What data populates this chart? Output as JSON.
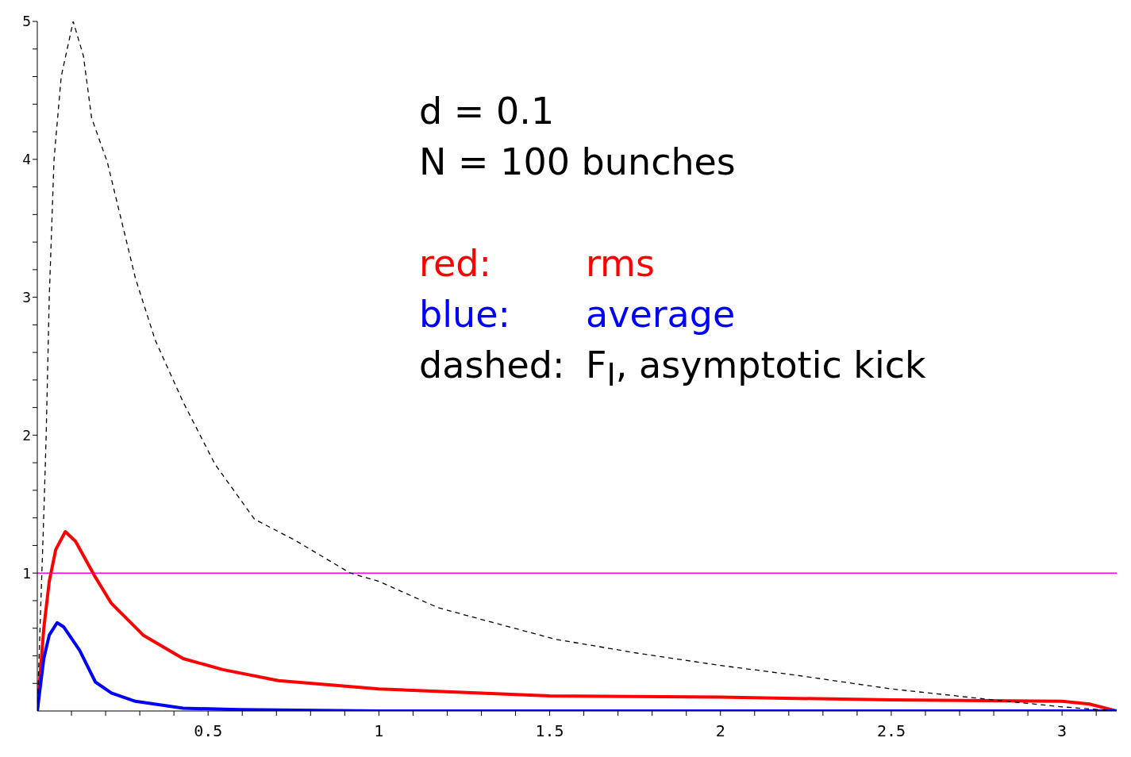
{
  "chart_data": {
    "type": "line",
    "annotations": [
      "d = 0.1",
      "N = 100 bunches",
      "red:",
      "blue:",
      "dashed:"
    ],
    "series": [
      {
        "name": "rms",
        "color": "#ff0000",
        "line_style": "solid",
        "x": [
          0,
          0.019,
          0.035,
          0.054,
          0.082,
          0.112,
          0.17,
          0.217,
          0.31,
          0.427,
          0.543,
          0.706,
          1.0,
          1.5,
          2.0,
          2.5,
          3.0,
          3.08,
          3.16
        ],
        "values": [
          0,
          0.6,
          0.94,
          1.17,
          1.3,
          1.23,
          0.97,
          0.78,
          0.55,
          0.38,
          0.3,
          0.22,
          0.16,
          0.11,
          0.1,
          0.08,
          0.07,
          0.05,
          0
        ]
      },
      {
        "name": "average",
        "color": "#0000ff",
        "line_style": "solid",
        "x": [
          0,
          0.019,
          0.035,
          0.058,
          0.077,
          0.124,
          0.17,
          0.217,
          0.287,
          0.427,
          0.59,
          1.0,
          3.16
        ],
        "values": [
          0,
          0.38,
          0.55,
          0.64,
          0.61,
          0.44,
          0.21,
          0.13,
          0.07,
          0.02,
          0.01,
          0,
          0
        ]
      },
      {
        "name": "F$_{I}$, asymptotic kick",
        "color": "#000000",
        "line_style": "dashed",
        "x": [
          0,
          0.02,
          0.026,
          0.035,
          0.049,
          0.07,
          0.105,
          0.135,
          0.159,
          0.205,
          0.287,
          0.345,
          0.427,
          0.52,
          0.636,
          0.753,
          0.916,
          1.0,
          1.172,
          1.336,
          1.517,
          1.755,
          2.0,
          2.22,
          2.5,
          2.8,
          3.0,
          3.16
        ],
        "values": [
          0,
          1.5,
          2,
          3,
          4,
          4.6,
          5,
          4.75,
          4.3,
          3.98,
          3.14,
          2.69,
          2.24,
          1.79,
          1.39,
          1.24,
          1.0,
          0.94,
          0.75,
          0.64,
          0.52,
          0.42,
          0.33,
          0.26,
          0.16,
          0.08,
          0.03,
          0
        ]
      }
    ],
    "ref_lines": [
      {
        "axis": "y",
        "value": 1,
        "color": "#ff00ff",
        "line_style": "solid"
      }
    ],
    "xlim": [
      0,
      3.16
    ],
    "xticks": [
      {
        "value": 0.1,
        "label": null
      },
      {
        "value": 0.2,
        "label": null
      },
      {
        "value": 0.3,
        "label": null
      },
      {
        "value": 0.4,
        "label": null
      },
      0.5,
      {
        "value": 0.6,
        "label": null
      },
      {
        "value": 0.7,
        "label": null
      },
      {
        "value": 0.8,
        "label": null
      },
      {
        "value": 0.9,
        "label": null
      },
      1,
      {
        "value": 1.1,
        "label": null
      },
      {
        "value": 1.2,
        "label": null
      },
      {
        "value": 1.3,
        "label": null
      },
      {
        "value": 1.4,
        "label": null
      },
      1.5,
      {
        "value": 1.6,
        "label": null
      },
      {
        "value": 1.7,
        "label": null
      },
      {
        "value": 1.8,
        "label": null
      },
      {
        "value": 1.9,
        "label": null
      },
      2,
      {
        "value": 2.1,
        "label": null
      },
      {
        "value": 2.2,
        "label": null
      },
      {
        "value": 2.3,
        "label": null
      },
      {
        "value": 2.4,
        "label": null
      },
      2.5,
      {
        "value": 2.6,
        "label": null
      },
      {
        "value": 2.7,
        "label": null
      },
      {
        "value": 2.8,
        "label": null
      },
      {
        "value": 2.9,
        "label": null
      },
      3,
      {
        "value": 3.1,
        "label": null
      }
    ],
    "ylim": [
      0,
      5
    ],
    "yticks": [
      {
        "value": 0.2,
        "label": null
      },
      {
        "value": 0.4,
        "label": null
      },
      {
        "value": 0.6,
        "label": null
      },
      {
        "value": 0.8,
        "label": null
      },
      1,
      {
        "value": 1.2,
        "label": null
      },
      {
        "value": 1.4,
        "label": null
      },
      {
        "value": 1.6,
        "label": null
      },
      {
        "value": 1.8,
        "label": null
      },
      2,
      {
        "value": 2.2,
        "label": null
      },
      {
        "value": 2.4,
        "label": null
      },
      {
        "value": 2.6,
        "label": null
      },
      {
        "value": 2.8,
        "label": null
      },
      3,
      {
        "value": 3.2,
        "label": null
      },
      {
        "value": 3.4,
        "label": null
      },
      {
        "value": 3.6,
        "label": null
      },
      {
        "value": 3.8,
        "label": null
      },
      4,
      {
        "value": 4.2,
        "label": null
      },
      {
        "value": 4.4,
        "label": null
      },
      {
        "value": 4.6,
        "label": null
      },
      {
        "value": 4.8,
        "label": null
      },
      5
    ],
    "legend": "top right",
    "marker": "none"
  }
}
